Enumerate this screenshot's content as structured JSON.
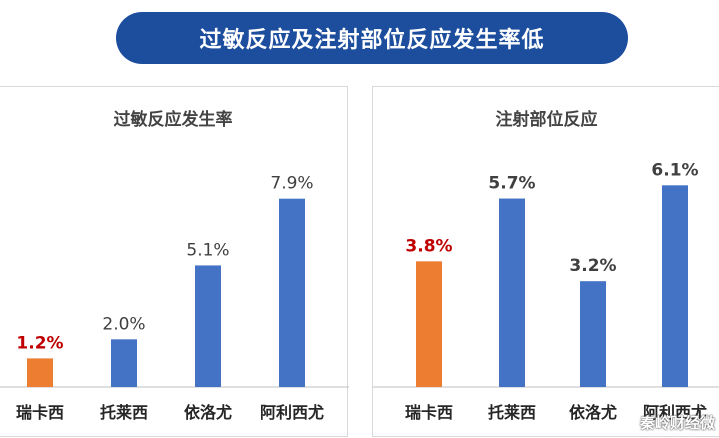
{
  "banner": {
    "title": "过敏反应及注射部位反应发生率低"
  },
  "watermark": {
    "text": "秦岭财经微"
  },
  "colors": {
    "highlight": "#ed7d31",
    "bar": "#4472c4",
    "highlight_label": "#c00000",
    "label": "#404040",
    "axis": "#bfbfbf"
  },
  "chart_data": [
    {
      "type": "bar",
      "title": "过敏反应发生率",
      "categories": [
        "瑞卡西",
        "托莱西",
        "依洛尤",
        "阿利西尤"
      ],
      "values": [
        1.2,
        2.0,
        5.1,
        7.9
      ],
      "data_labels": [
        "1.2%",
        "2.0%",
        "5.1%",
        "7.9%"
      ],
      "highlight_index": 0,
      "ylim": [
        0,
        8.6
      ],
      "grid": false,
      "legend": "none"
    },
    {
      "type": "bar",
      "title": "注射部位反应",
      "categories": [
        "瑞卡西",
        "托莱西",
        "依洛尤",
        "阿利西尤"
      ],
      "values": [
        3.8,
        5.7,
        3.2,
        6.1
      ],
      "data_labels": [
        "3.8%",
        "5.7%",
        "3.2%",
        "6.1%"
      ],
      "highlight_index": 0,
      "ylim": [
        0,
        6.2
      ],
      "grid": false,
      "legend": "none"
    }
  ]
}
